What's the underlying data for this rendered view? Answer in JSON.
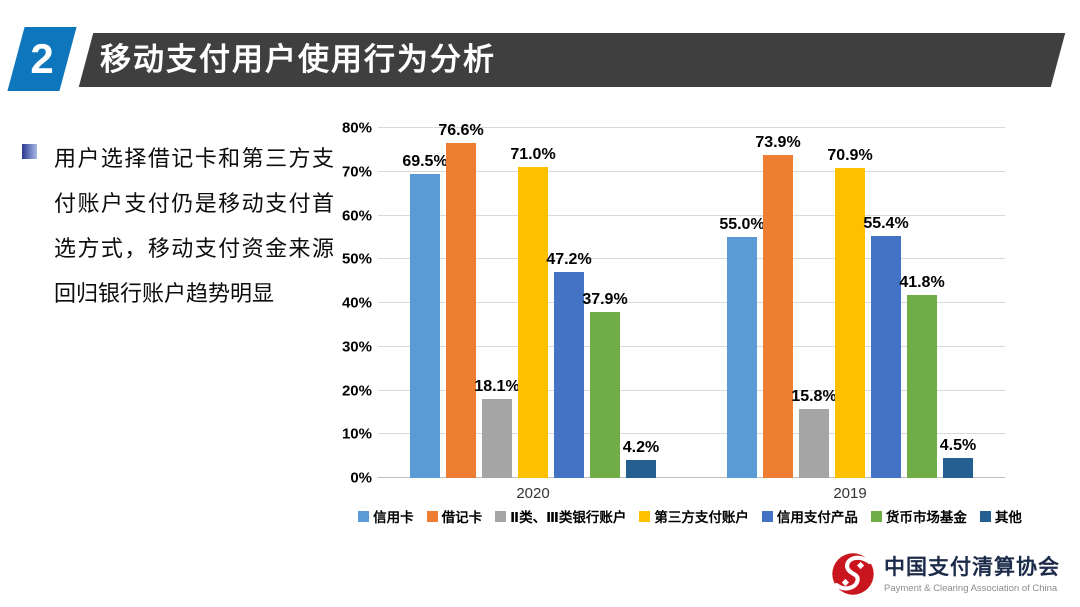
{
  "header": {
    "number": "2",
    "title": "移动支付用户使用行为分析"
  },
  "intro": {
    "text": "用户选择借记卡和第三方支付账户支付仍是移动支付首选方式，移动支付资金来源回归银行账户趋势明显"
  },
  "chart_data": {
    "type": "bar",
    "categories": [
      "2020",
      "2019"
    ],
    "series": [
      {
        "name": "信用卡",
        "color": "#5B9BD5",
        "values": [
          69.5,
          55.0
        ]
      },
      {
        "name": "借记卡",
        "color": "#ED7D31",
        "values": [
          76.6,
          73.9
        ]
      },
      {
        "name": "Ⅱ类、Ⅲ类银行账户",
        "color": "#A5A5A5",
        "values": [
          18.1,
          15.8
        ]
      },
      {
        "name": "第三方支付账户",
        "color": "#FFC000",
        "values": [
          71.0,
          70.9
        ]
      },
      {
        "name": "信用支付产品",
        "color": "#4472C4",
        "values": [
          47.2,
          55.4
        ]
      },
      {
        "name": "货币市场基金",
        "color": "#70AD47",
        "values": [
          37.9,
          41.8
        ]
      },
      {
        "name": "其他",
        "color": "#255E91",
        "values": [
          4.2,
          4.5
        ]
      }
    ],
    "title": "",
    "xlabel": "",
    "ylabel": "",
    "ylim": [
      0,
      80
    ],
    "ytick_step": 10,
    "value_suffix": "%",
    "grid": true,
    "legend_position": "bottom"
  },
  "logo": {
    "title": "中国支付清算协会",
    "subtitle": "Payment & Clearing Association of China",
    "brand_color": "#C9161E"
  },
  "theme": {
    "header_accent": "#0E76BC",
    "header_bar": "#3F3F3F"
  }
}
